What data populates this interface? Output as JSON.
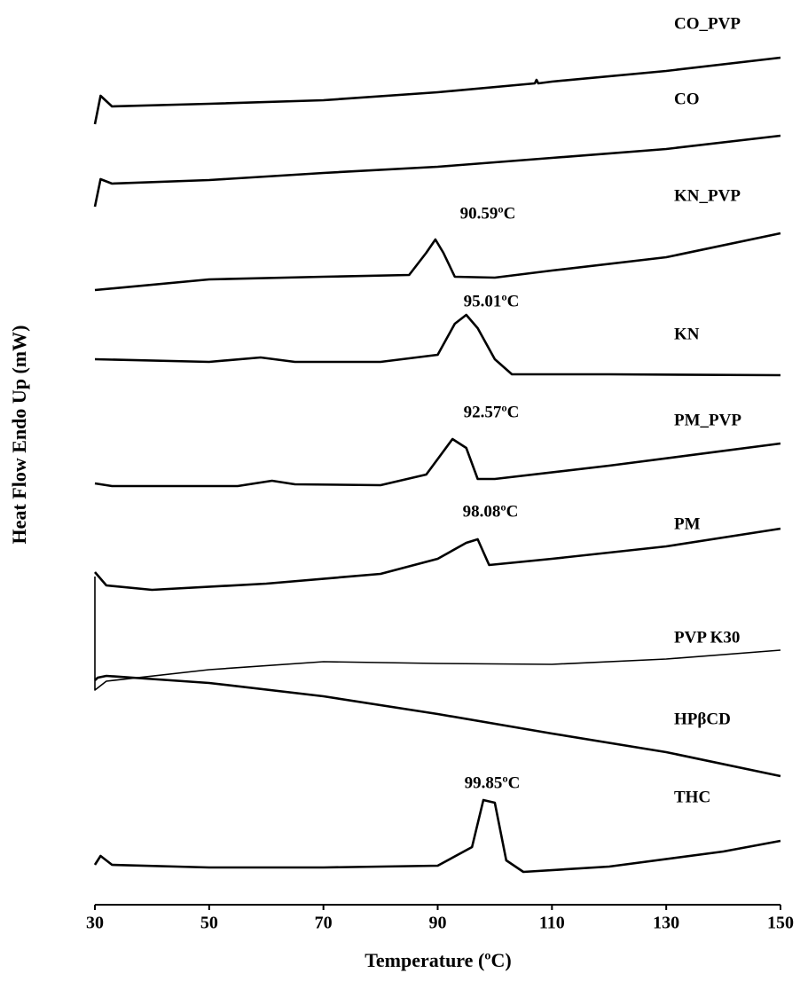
{
  "chart_data": {
    "type": "line",
    "xlabel": "Temperature (ºC)",
    "ylabel": "Heat Flow Endo Up (mW)",
    "xlim": [
      30,
      150
    ],
    "xticks": [
      30,
      50,
      70,
      90,
      110,
      130,
      150
    ],
    "ylim": [
      0,
      100
    ],
    "series": [
      {
        "name": "CO_PVP",
        "color": "#000000",
        "x": [
          30,
          31,
          33,
          50,
          70,
          90,
          107,
          107.3,
          107.6,
          110,
          130,
          150
        ],
        "values": [
          88,
          91.2,
          90,
          90.3,
          90.7,
          91.6,
          92.6,
          93.0,
          92.6,
          92.8,
          94,
          95.5
        ]
      },
      {
        "name": "CO",
        "color": "#000000",
        "x": [
          30,
          31,
          33,
          50,
          70,
          90,
          110,
          130,
          150
        ],
        "values": [
          78.7,
          81.8,
          81.3,
          81.7,
          82.5,
          83.2,
          84.2,
          85.2,
          86.7
        ]
      },
      {
        "name": "KN_PVP",
        "color": "#000000",
        "x": [
          30,
          50,
          70,
          85,
          88,
          89.6,
          91,
          93,
          100,
          110,
          130,
          150
        ],
        "values": [
          69.3,
          70.5,
          70.8,
          71,
          73.5,
          75,
          73.5,
          70.8,
          70.7,
          71.5,
          73,
          75.7
        ]
      },
      {
        "name": "KN",
        "color": "#000000",
        "x": [
          30,
          50,
          59,
          65,
          80,
          90,
          93,
          95,
          97,
          100,
          103,
          120,
          150
        ],
        "values": [
          61.5,
          61.2,
          61.7,
          61.2,
          61.2,
          62,
          65.5,
          66.5,
          65,
          61.5,
          59.8,
          59.8,
          59.7
        ]
      },
      {
        "name": "PM_PVP",
        "color": "#000000",
        "x": [
          30,
          33,
          55,
          61,
          65,
          80,
          88,
          92.6,
          95,
          97,
          100,
          120,
          150
        ],
        "values": [
          47.5,
          47.2,
          47.2,
          47.8,
          47.4,
          47.3,
          48.5,
          52.5,
          51.5,
          48,
          48,
          49.5,
          52
        ]
      },
      {
        "name": "PM",
        "color": "#000000",
        "x": [
          30,
          32,
          40,
          60,
          80,
          90,
          95,
          97,
          99,
          110,
          130,
          150
        ],
        "values": [
          37.5,
          36,
          35.5,
          36.2,
          37.3,
          39,
          40.8,
          41.2,
          38.3,
          39,
          40.4,
          42.4
        ]
      },
      {
        "name": "PVP K30",
        "color": "#000000",
        "x": [
          30,
          30,
          32,
          50,
          70,
          90,
          110,
          130,
          150
        ],
        "values": [
          37,
          24.2,
          25.2,
          26.5,
          27.4,
          27.2,
          27.1,
          27.7,
          28.7
        ]
      },
      {
        "name": "HPβCD",
        "color": "#000000",
        "x": [
          30,
          30.5,
          32,
          50,
          70,
          90,
          110,
          130,
          150
        ],
        "values": [
          25.3,
          25.6,
          25.8,
          25,
          23.5,
          21.5,
          19.3,
          17.2,
          14.5
        ]
      },
      {
        "name": "THC",
        "color": "#000000",
        "x": [
          30,
          31,
          33,
          50,
          70,
          90,
          96,
          98,
          100,
          102,
          105,
          120,
          140,
          150
        ],
        "values": [
          4.5,
          5.5,
          4.5,
          4.2,
          4.2,
          4.4,
          6.5,
          11.8,
          11.5,
          5,
          3.7,
          4.3,
          6,
          7.2
        ]
      }
    ],
    "annotations": [
      "90.59ºC",
      "95.01ºC",
      "92.57ºC",
      "98.08ºC",
      "99.85ºC"
    ]
  }
}
